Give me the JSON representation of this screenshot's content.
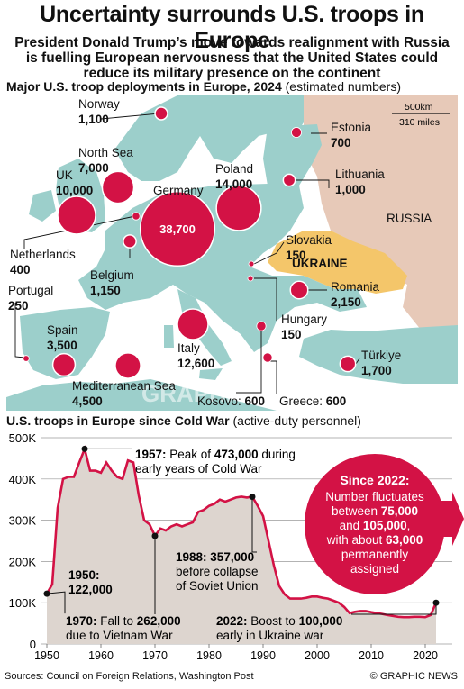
{
  "title": "Uncertainty surrounds U.S. troops in Europe",
  "subtitle_lines": [
    "President Donald Trump’s move towards realignment with Russia",
    "is fuelling European nervousness that the United States could",
    "reduce its military presence on the continent"
  ],
  "map": {
    "heading": "Major U.S. troop deployments in Europe, 2024",
    "heading_note": "(estimated numbers)",
    "scale": {
      "km": "500km",
      "miles": "310 miles"
    },
    "region_labels": {
      "russia": "RUSSIA",
      "ukraine": "UKRAINE"
    },
    "watermark": "GRAPHIC NEWS",
    "deployments": [
      {
        "id": "norway",
        "name": "Norway",
        "value": "1,100",
        "troops": 1100
      },
      {
        "id": "estonia",
        "name": "Estonia",
        "value": "700",
        "troops": 700
      },
      {
        "id": "north-sea",
        "name": "North Sea",
        "value": "7,000",
        "troops": 7000
      },
      {
        "id": "uk",
        "name": "UK",
        "value": "10,000",
        "troops": 10000
      },
      {
        "id": "poland",
        "name": "Poland",
        "value": "14,000",
        "troops": 14000
      },
      {
        "id": "lithuania",
        "name": "Lithuania",
        "value": "1,000",
        "troops": 1000
      },
      {
        "id": "germany",
        "name": "Germany",
        "value": "38,700",
        "troops": 38700
      },
      {
        "id": "netherlands",
        "name": "Netherlands",
        "value": "400",
        "troops": 400
      },
      {
        "id": "slovakia",
        "name": "Slovakia",
        "value": "150",
        "troops": 150
      },
      {
        "id": "belgium",
        "name": "Belgium",
        "value": "1,150",
        "troops": 1150
      },
      {
        "id": "portugal",
        "name": "Portugal",
        "value": "250",
        "troops": 250
      },
      {
        "id": "romania",
        "name": "Romania",
        "value": "2,150",
        "troops": 2150
      },
      {
        "id": "hungary",
        "name": "Hungary",
        "value": "150",
        "troops": 150
      },
      {
        "id": "spain",
        "name": "Spain",
        "value": "3,500",
        "troops": 3500
      },
      {
        "id": "italy",
        "name": "Italy",
        "value": "12,600",
        "troops": 12600
      },
      {
        "id": "turkiye",
        "name": "Türkiye",
        "value": "1,700",
        "troops": 1700
      },
      {
        "id": "mediterranean",
        "name": "Mediterranean Sea",
        "value": "4,500",
        "troops": 4500
      },
      {
        "id": "kosovo",
        "name": "Kosovo:",
        "value": "600",
        "troops": 600
      },
      {
        "id": "greece",
        "name": "Greece:",
        "value": "600",
        "troops": 600
      }
    ]
  },
  "chart_heading": "U.S. troops in Europe since Cold War",
  "chart_heading_note": "(active-duty personnel)",
  "chart_data": {
    "type": "area",
    "ylim": [
      0,
      500000
    ],
    "xlim": [
      1949,
      2025
    ],
    "yticks": [
      0,
      100000,
      200000,
      300000,
      400000,
      500000
    ],
    "ytick_labels": [
      "0",
      "100K",
      "200K",
      "300K",
      "400K",
      "500K"
    ],
    "xticks": [
      1950,
      1960,
      1970,
      1980,
      1990,
      2000,
      2010,
      2020
    ],
    "grid": true,
    "x": [
      1950,
      1951,
      1952,
      1953,
      1954,
      1955,
      1956,
      1957,
      1958,
      1959,
      1960,
      1961,
      1962,
      1963,
      1964,
      1965,
      1966,
      1967,
      1968,
      1969,
      1970,
      1971,
      1972,
      1973,
      1974,
      1975,
      1976,
      1977,
      1978,
      1979,
      1980,
      1981,
      1982,
      1983,
      1984,
      1985,
      1986,
      1987,
      1988,
      1989,
      1990,
      1991,
      1992,
      1993,
      1994,
      1995,
      1996,
      1997,
      1998,
      1999,
      2000,
      2001,
      2002,
      2003,
      2004,
      2005,
      2006,
      2007,
      2008,
      2009,
      2010,
      2011,
      2012,
      2013,
      2014,
      2015,
      2016,
      2017,
      2018,
      2019,
      2020,
      2021,
      2022
    ],
    "values": [
      122000,
      145000,
      330000,
      400000,
      405000,
      405000,
      440000,
      473000,
      420000,
      420000,
      415000,
      440000,
      420000,
      405000,
      400000,
      445000,
      440000,
      360000,
      300000,
      290000,
      262000,
      280000,
      275000,
      285000,
      290000,
      285000,
      290000,
      295000,
      320000,
      325000,
      335000,
      340000,
      350000,
      345000,
      350000,
      355000,
      357000,
      355000,
      357000,
      335000,
      310000,
      250000,
      190000,
      140000,
      120000,
      110000,
      110000,
      110000,
      112000,
      115000,
      115000,
      112000,
      110000,
      105000,
      100000,
      90000,
      75000,
      78000,
      80000,
      80000,
      77000,
      75000,
      73000,
      70000,
      68000,
      66000,
      65000,
      65000,
      66000,
      66000,
      65000,
      70000,
      100000
    ],
    "annotations": [
      {
        "id": "1957",
        "year": 1957,
        "value": 473000,
        "lines": [
          "1957: Peak of 473,000 during",
          "early years of Cold War"
        ]
      },
      {
        "id": "1950",
        "year": 1950,
        "value": 122000,
        "lines": [
          "1950:",
          "122,000"
        ]
      },
      {
        "id": "1970",
        "year": 1970,
        "value": 262000,
        "lines": [
          "1970: Fall to 262,000",
          "due to Vietnam War"
        ]
      },
      {
        "id": "1988",
        "year": 1988,
        "value": 357000,
        "lines": [
          "1988: 357,000",
          "before collapse",
          "of Soviet Union"
        ]
      },
      {
        "id": "2022",
        "year": 2022,
        "value": 100000,
        "lines": [
          "2022: Boost to 100,000",
          "early in Ukraine war"
        ]
      }
    ],
    "callout": {
      "title": "Since 2022:",
      "lines": [
        "Number fluctuates",
        "between 75,000",
        "and 105,000,",
        "with about 63,000",
        "permanently",
        "assigned"
      ]
    }
  },
  "footer": {
    "sources": "Sources: Council on Foreign Relations, Washington Post",
    "credit": "© GRAPHIC NEWS"
  },
  "colors": {
    "bubble": "#d31245",
    "land": "#9ccfcb",
    "sea": "#ffffff",
    "russia": "#e7c9b8",
    "ukraine": "#f4c66a",
    "area": "#ddd5cf",
    "line": "#d31245"
  }
}
